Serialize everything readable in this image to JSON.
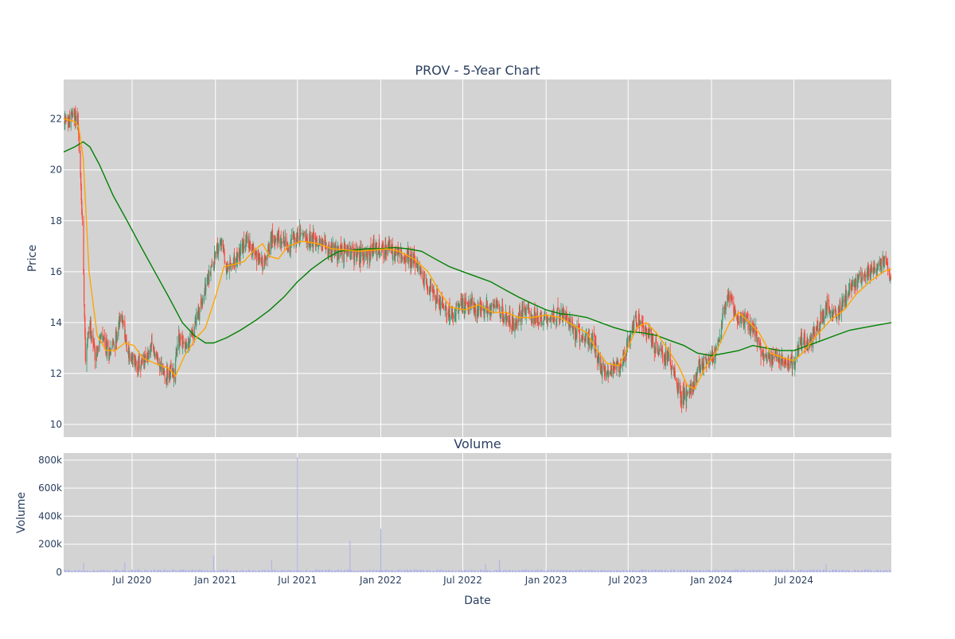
{
  "chart_data": [
    {
      "type": "candlestick",
      "title": "PROV - 5-Year Chart",
      "xlabel": "",
      "ylabel": "Price",
      "ylim": [
        9.5,
        23.55
      ],
      "yticks": [
        10,
        12,
        14,
        16,
        18,
        20,
        22
      ],
      "xlim": [
        "2020-02-01",
        "2025-02-01"
      ],
      "xticks": [
        "2020-07-01",
        "2021-01-01",
        "2021-07-01",
        "2022-01-01",
        "2022-07-01",
        "2023-01-01",
        "2023-07-01",
        "2024-01-01",
        "2024-07-01"
      ],
      "grid": true,
      "colors": {
        "background": "#d3d3d3",
        "grid": "#ffffff",
        "up": "#3d9970",
        "down": "#ff4136",
        "ma_short": "#ffa500",
        "ma_long": "#008000"
      },
      "price_keypoints": [
        [
          "2020-02-01",
          21.8
        ],
        [
          "2020-02-12",
          21.9
        ],
        [
          "2020-02-22",
          22.2
        ],
        [
          "2020-03-03",
          22.0
        ],
        [
          "2020-03-09",
          19.7
        ],
        [
          "2020-03-14",
          17.5
        ],
        [
          "2020-03-20",
          12.8
        ],
        [
          "2020-03-30",
          14.0
        ],
        [
          "2020-04-10",
          12.8
        ],
        [
          "2020-04-25",
          13.4
        ],
        [
          "2020-05-10",
          12.8
        ],
        [
          "2020-05-25",
          13.3
        ],
        [
          "2020-06-08",
          14.3
        ],
        [
          "2020-06-25",
          12.6
        ],
        [
          "2020-07-20",
          12.3
        ],
        [
          "2020-08-15",
          13.0
        ],
        [
          "2020-09-10",
          12.0
        ],
        [
          "2020-10-02",
          12.0
        ],
        [
          "2020-10-10",
          13.5
        ],
        [
          "2020-10-30",
          13.0
        ],
        [
          "2020-11-15",
          13.8
        ],
        [
          "2020-12-05",
          15.0
        ],
        [
          "2020-12-20",
          16.0
        ],
        [
          "2021-01-05",
          16.8
        ],
        [
          "2021-01-15",
          17.2
        ],
        [
          "2021-01-25",
          16.0
        ],
        [
          "2021-02-15",
          16.4
        ],
        [
          "2021-03-10",
          17.2
        ],
        [
          "2021-04-05",
          16.6
        ],
        [
          "2021-04-20",
          16.3
        ],
        [
          "2021-05-10",
          17.6
        ],
        [
          "2021-05-25",
          17.1
        ],
        [
          "2021-06-10",
          17.0
        ],
        [
          "2021-07-10",
          17.5
        ],
        [
          "2021-08-15",
          17.2
        ],
        [
          "2021-09-15",
          16.8
        ],
        [
          "2021-10-15",
          16.8
        ],
        [
          "2021-11-15",
          16.6
        ],
        [
          "2021-12-15",
          16.8
        ],
        [
          "2022-01-20",
          16.9
        ],
        [
          "2022-02-15",
          16.6
        ],
        [
          "2022-03-15",
          16.4
        ],
        [
          "2022-04-10",
          15.6
        ],
        [
          "2022-05-05",
          15.0
        ],
        [
          "2022-06-01",
          14.4
        ],
        [
          "2022-06-15",
          14.5
        ],
        [
          "2022-07-15",
          14.8
        ],
        [
          "2022-08-15",
          14.4
        ],
        [
          "2022-09-10",
          14.6
        ],
        [
          "2022-10-05",
          14.2
        ],
        [
          "2022-10-25",
          13.8
        ],
        [
          "2022-11-10",
          14.6
        ],
        [
          "2022-12-05",
          14.2
        ],
        [
          "2022-12-25",
          14.1
        ],
        [
          "2023-01-20",
          14.3
        ],
        [
          "2023-02-10",
          14.3
        ],
        [
          "2023-03-05",
          13.6
        ],
        [
          "2023-03-25",
          13.5
        ],
        [
          "2023-04-15",
          13.3
        ],
        [
          "2023-05-01",
          12.2
        ],
        [
          "2023-05-20",
          12.0
        ],
        [
          "2023-06-10",
          12.3
        ],
        [
          "2023-06-25",
          12.8
        ],
        [
          "2023-07-10",
          13.8
        ],
        [
          "2023-07-25",
          14.1
        ],
        [
          "2023-08-15",
          13.6
        ],
        [
          "2023-09-05",
          12.9
        ],
        [
          "2023-10-01",
          12.6
        ],
        [
          "2023-10-25",
          11.1
        ],
        [
          "2023-11-15",
          11.3
        ],
        [
          "2023-12-05",
          12.2
        ],
        [
          "2023-12-25",
          12.6
        ],
        [
          "2024-01-15",
          12.9
        ],
        [
          "2024-01-25",
          14.2
        ],
        [
          "2024-02-08",
          15.2
        ],
        [
          "2024-02-25",
          14.2
        ],
        [
          "2024-03-20",
          14.0
        ],
        [
          "2024-04-10",
          13.5
        ],
        [
          "2024-04-25",
          12.7
        ],
        [
          "2024-05-20",
          12.6
        ],
        [
          "2024-06-15",
          12.5
        ],
        [
          "2024-07-01",
          12.3
        ],
        [
          "2024-07-15",
          13.3
        ],
        [
          "2024-08-05",
          13.2
        ],
        [
          "2024-08-25",
          14.0
        ],
        [
          "2024-09-15",
          14.6
        ],
        [
          "2024-10-05",
          14.3
        ],
        [
          "2024-10-25",
          15.0
        ],
        [
          "2024-11-10",
          15.5
        ],
        [
          "2024-12-01",
          15.8
        ],
        [
          "2024-12-20",
          16.0
        ],
        [
          "2025-01-10",
          16.2
        ],
        [
          "2025-01-20",
          16.5
        ],
        [
          "2025-02-01",
          15.6
        ]
      ],
      "ma_short_keypoints": [
        [
          "2020-02-01",
          22.0
        ],
        [
          "2020-02-25",
          21.9
        ],
        [
          "2020-03-05",
          21.7
        ],
        [
          "2020-03-15",
          20.5
        ],
        [
          "2020-03-28",
          16.0
        ],
        [
          "2020-04-15",
          13.5
        ],
        [
          "2020-05-05",
          12.9
        ],
        [
          "2020-05-25",
          12.9
        ],
        [
          "2020-06-15",
          13.2
        ],
        [
          "2020-07-05",
          13.1
        ],
        [
          "2020-07-25",
          12.6
        ],
        [
          "2020-08-20",
          12.4
        ],
        [
          "2020-09-20",
          12.2
        ],
        [
          "2020-10-05",
          11.9
        ],
        [
          "2020-10-25",
          12.7
        ],
        [
          "2020-11-20",
          13.4
        ],
        [
          "2020-12-10",
          13.8
        ],
        [
          "2021-01-01",
          15.0
        ],
        [
          "2021-01-20",
          16.2
        ],
        [
          "2021-02-15",
          16.3
        ],
        [
          "2021-03-05",
          16.4
        ],
        [
          "2021-03-25",
          16.8
        ],
        [
          "2021-04-15",
          17.1
        ],
        [
          "2021-05-01",
          16.6
        ],
        [
          "2021-05-20",
          16.5
        ],
        [
          "2021-06-10",
          17.0
        ],
        [
          "2021-07-10",
          17.2
        ],
        [
          "2021-08-15",
          17.1
        ],
        [
          "2021-09-15",
          16.9
        ],
        [
          "2021-11-15",
          16.8
        ],
        [
          "2022-01-15",
          16.9
        ],
        [
          "2022-02-10",
          16.8
        ],
        [
          "2022-03-15",
          16.5
        ],
        [
          "2022-04-15",
          16.0
        ],
        [
          "2022-05-15",
          15.1
        ],
        [
          "2022-06-05",
          14.6
        ],
        [
          "2022-07-05",
          14.5
        ],
        [
          "2022-08-05",
          14.7
        ],
        [
          "2022-09-05",
          14.4
        ],
        [
          "2022-10-05",
          14.4
        ],
        [
          "2022-11-01",
          14.2
        ],
        [
          "2022-12-01",
          14.2
        ],
        [
          "2023-01-01",
          14.3
        ],
        [
          "2023-02-01",
          14.2
        ],
        [
          "2023-03-01",
          13.9
        ],
        [
          "2023-04-01",
          13.6
        ],
        [
          "2023-04-20",
          13.0
        ],
        [
          "2023-05-15",
          12.4
        ],
        [
          "2023-06-10",
          12.3
        ],
        [
          "2023-06-25",
          12.8
        ],
        [
          "2023-07-20",
          13.8
        ],
        [
          "2023-08-10",
          14.0
        ],
        [
          "2023-09-01",
          13.6
        ],
        [
          "2023-09-25",
          13.0
        ],
        [
          "2023-10-20",
          12.3
        ],
        [
          "2023-11-10",
          11.5
        ],
        [
          "2023-11-25",
          11.4
        ],
        [
          "2023-12-20",
          12.3
        ],
        [
          "2024-01-10",
          12.8
        ],
        [
          "2024-02-10",
          14.0
        ],
        [
          "2024-03-01",
          14.4
        ],
        [
          "2024-03-25",
          14.0
        ],
        [
          "2024-04-15",
          13.6
        ],
        [
          "2024-05-10",
          12.8
        ],
        [
          "2024-06-10",
          12.6
        ],
        [
          "2024-07-01",
          12.5
        ],
        [
          "2024-07-20",
          12.8
        ],
        [
          "2024-08-20",
          13.5
        ],
        [
          "2024-09-20",
          14.1
        ],
        [
          "2024-10-20",
          14.5
        ],
        [
          "2024-11-15",
          15.1
        ],
        [
          "2024-12-15",
          15.6
        ],
        [
          "2025-01-15",
          16.0
        ],
        [
          "2025-02-01",
          16.1
        ]
      ],
      "ma_long_keypoints": [
        [
          "2020-02-01",
          20.7
        ],
        [
          "2020-02-25",
          20.9
        ],
        [
          "2020-03-15",
          21.1
        ],
        [
          "2020-03-30",
          20.9
        ],
        [
          "2020-04-20",
          20.2
        ],
        [
          "2020-05-20",
          19.0
        ],
        [
          "2020-06-20",
          18.0
        ],
        [
          "2020-07-20",
          17.0
        ],
        [
          "2020-08-20",
          16.0
        ],
        [
          "2020-09-20",
          15.0
        ],
        [
          "2020-10-20",
          14.0
        ],
        [
          "2020-11-15",
          13.5
        ],
        [
          "2020-12-10",
          13.2
        ],
        [
          "2020-12-28",
          13.2
        ],
        [
          "2021-01-25",
          13.4
        ],
        [
          "2021-02-25",
          13.7
        ],
        [
          "2021-04-01",
          14.1
        ],
        [
          "2021-05-01",
          14.5
        ],
        [
          "2021-06-01",
          15.0
        ],
        [
          "2021-07-01",
          15.6
        ],
        [
          "2021-08-01",
          16.1
        ],
        [
          "2021-09-01",
          16.5
        ],
        [
          "2021-10-01",
          16.8
        ],
        [
          "2021-11-01",
          16.85
        ],
        [
          "2021-12-01",
          16.9
        ],
        [
          "2022-01-01",
          16.9
        ],
        [
          "2022-02-01",
          16.95
        ],
        [
          "2022-03-01",
          16.9
        ],
        [
          "2022-04-01",
          16.8
        ],
        [
          "2022-05-01",
          16.5
        ],
        [
          "2022-06-01",
          16.2
        ],
        [
          "2022-07-01",
          16.0
        ],
        [
          "2022-08-01",
          15.8
        ],
        [
          "2022-09-01",
          15.6
        ],
        [
          "2022-10-01",
          15.3
        ],
        [
          "2022-11-01",
          15.0
        ],
        [
          "2022-12-01",
          14.75
        ],
        [
          "2023-01-01",
          14.5
        ],
        [
          "2023-02-01",
          14.35
        ],
        [
          "2023-03-01",
          14.3
        ],
        [
          "2023-04-01",
          14.2
        ],
        [
          "2023-05-01",
          14.0
        ],
        [
          "2023-06-01",
          13.8
        ],
        [
          "2023-07-01",
          13.65
        ],
        [
          "2023-08-01",
          13.6
        ],
        [
          "2023-09-01",
          13.5
        ],
        [
          "2023-10-01",
          13.3
        ],
        [
          "2023-11-01",
          13.1
        ],
        [
          "2023-12-01",
          12.8
        ],
        [
          "2024-01-01",
          12.7
        ],
        [
          "2024-02-01",
          12.8
        ],
        [
          "2024-03-01",
          12.9
        ],
        [
          "2024-04-01",
          13.1
        ],
        [
          "2024-05-01",
          13.0
        ],
        [
          "2024-06-01",
          12.9
        ],
        [
          "2024-07-01",
          12.9
        ],
        [
          "2024-08-01",
          13.1
        ],
        [
          "2024-09-01",
          13.3
        ],
        [
          "2024-10-01",
          13.5
        ],
        [
          "2024-11-01",
          13.7
        ],
        [
          "2024-12-01",
          13.8
        ],
        [
          "2025-01-01",
          13.9
        ],
        [
          "2025-02-01",
          14.0
        ]
      ]
    },
    {
      "type": "bar",
      "title": "Volume",
      "xlabel": "Date",
      "ylabel": "Volume",
      "ylim": [
        0,
        850000
      ],
      "yticks": [
        0,
        200000,
        400000,
        600000,
        800000
      ],
      "ytick_labels": [
        "0",
        "200k",
        "400k",
        "600k",
        "800k"
      ],
      "xlim": [
        "2020-02-01",
        "2025-02-01"
      ],
      "xticks": [
        "2020-07-01",
        "2021-01-01",
        "2021-07-01",
        "2022-01-01",
        "2022-07-01",
        "2023-01-01",
        "2023-07-01",
        "2024-01-01",
        "2024-07-01"
      ],
      "xtick_labels": [
        "Jul 2020",
        "Jan 2021",
        "Jul 2021",
        "Jan 2022",
        "Jul 2022",
        "Jan 2023",
        "Jul 2023",
        "Jan 2024",
        "Jul 2024"
      ],
      "grid": true,
      "colors": {
        "background": "#d3d3d3",
        "bar": "#b0b4e8"
      },
      "typical_volume": 12000,
      "notable_spikes": [
        [
          "2020-03-16",
          65000
        ],
        [
          "2020-06-15",
          72000
        ],
        [
          "2020-12-28",
          120000
        ],
        [
          "2021-05-05",
          85000
        ],
        [
          "2021-07-01",
          820000
        ],
        [
          "2021-10-25",
          225000
        ],
        [
          "2022-01-01",
          310000
        ],
        [
          "2022-09-20",
          90000
        ],
        [
          "2022-08-20",
          60000
        ],
        [
          "2024-09-10",
          55000
        ]
      ]
    }
  ]
}
